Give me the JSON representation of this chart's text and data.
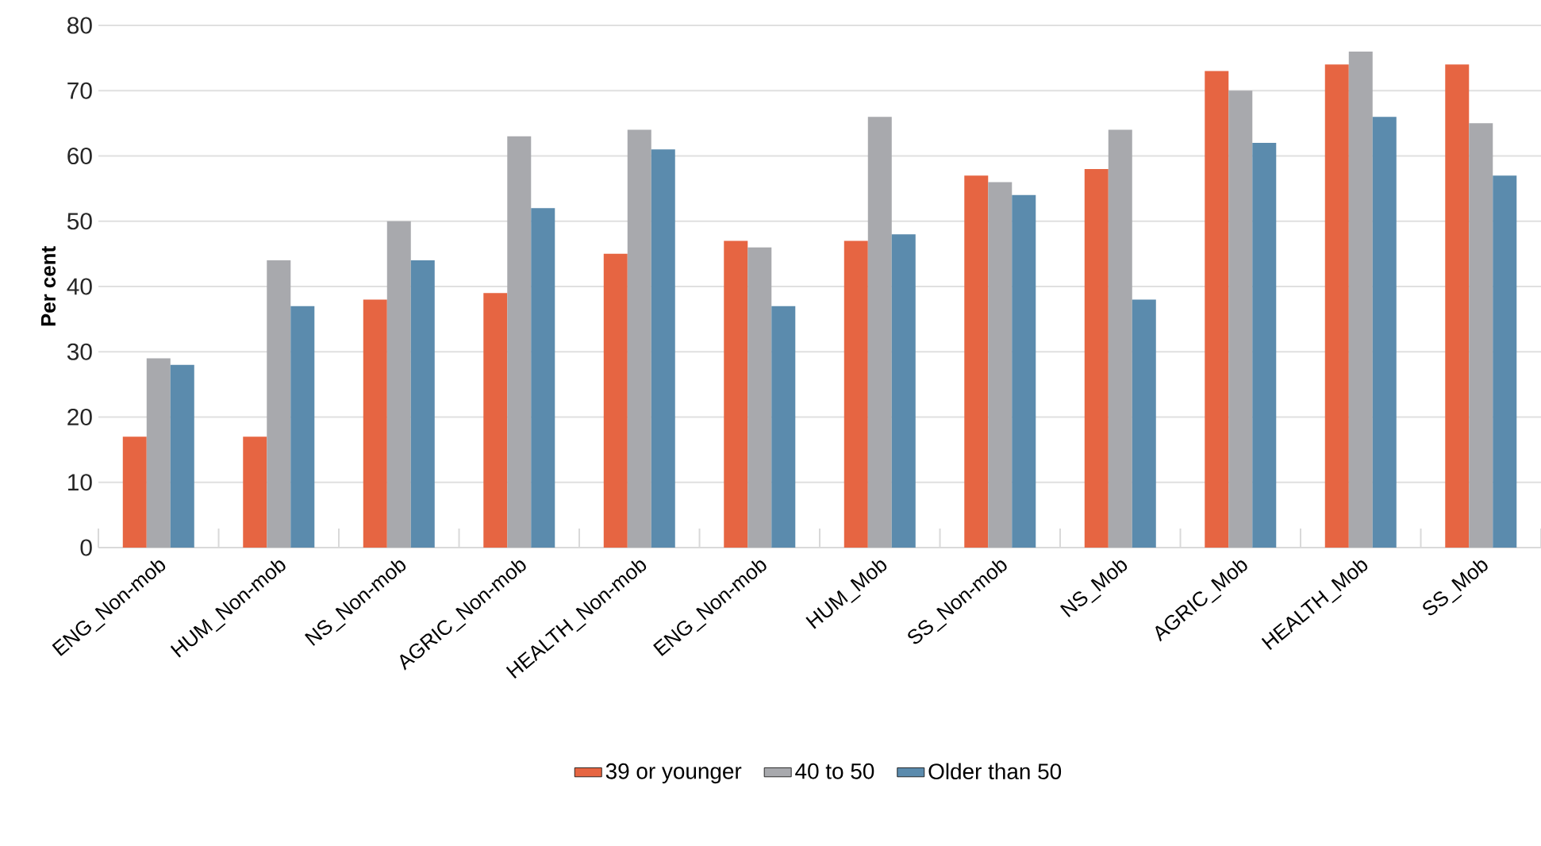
{
  "chart_data": {
    "type": "bar",
    "ylabel": "Per cent",
    "categories": [
      "ENG_Non-mob",
      "HUM_Non-mob",
      "NS_Non-mob",
      "AGRIC_Non-mob",
      "HEALTH_Non-mob",
      "ENG_Non-mob",
      "HUM_Mob",
      "SS_Non-mob",
      "NS_Mob",
      "AGRIC_Mob",
      "HEALTH_Mob",
      "SS_Mob"
    ],
    "series": [
      {
        "name": "39 or younger",
        "color": "#e66542",
        "values": [
          17,
          17,
          38,
          39,
          45,
          47,
          47,
          57,
          58,
          73,
          74,
          74
        ]
      },
      {
        "name": "40 to 50",
        "color": "#a8a9ad",
        "values": [
          29,
          44,
          50,
          63,
          64,
          46,
          66,
          56,
          64,
          70,
          76,
          65
        ]
      },
      {
        "name": "Older than 50",
        "color": "#5b8bad",
        "values": [
          28,
          37,
          44,
          52,
          61,
          37,
          48,
          54,
          38,
          62,
          66,
          57
        ]
      }
    ],
    "ylim": [
      0,
      80
    ],
    "yticks": [
      0,
      10,
      20,
      30,
      40,
      50,
      60,
      70,
      80
    ],
    "grid": "y",
    "legend": "bottom"
  }
}
